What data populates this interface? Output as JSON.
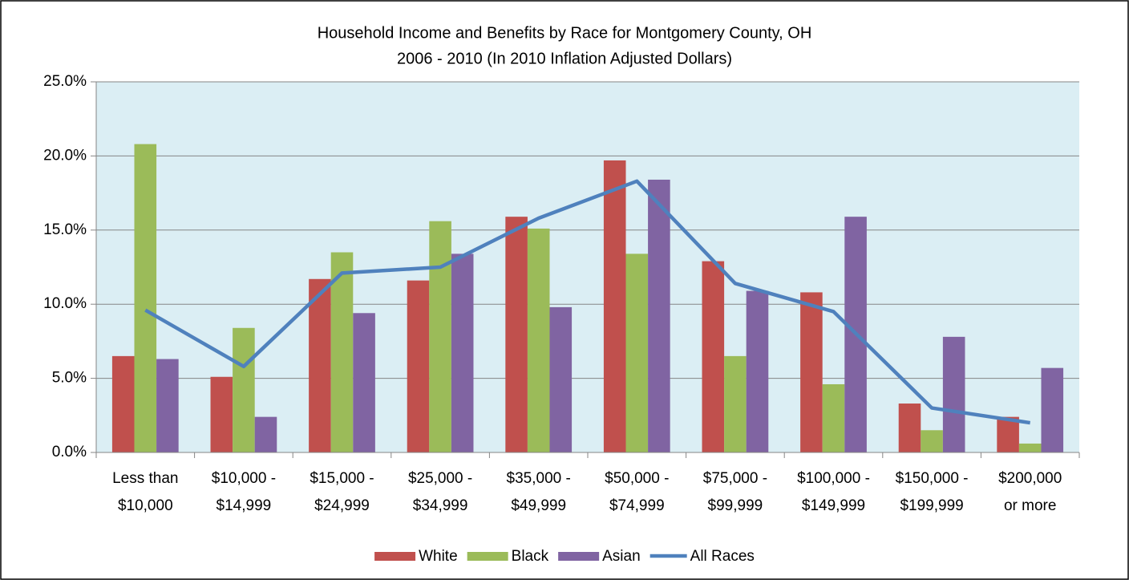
{
  "chart_data": {
    "type": "bar",
    "title": "Household Income and Benefits by Race for Montgomery County, OH",
    "subtitle": "2006 - 2010 (In 2010 Inflation Adjusted Dollars)",
    "categories": [
      [
        "Less than",
        "$10,000"
      ],
      [
        "$10,000 -",
        "$14,999"
      ],
      [
        "$15,000 -",
        "$24,999"
      ],
      [
        "$25,000 -",
        "$34,999"
      ],
      [
        "$35,000 -",
        "$49,999"
      ],
      [
        "$50,000 -",
        "$74,999"
      ],
      [
        "$75,000 -",
        "$99,999"
      ],
      [
        "$100,000 -",
        "$149,999"
      ],
      [
        "$150,000 -",
        "$199,999"
      ],
      [
        "$200,000",
        "or more"
      ]
    ],
    "series": [
      {
        "name": "White",
        "color": "#c0504d",
        "values": [
          6.5,
          5.1,
          11.7,
          11.6,
          15.9,
          19.7,
          12.9,
          10.8,
          3.3,
          2.4
        ]
      },
      {
        "name": "Black",
        "color": "#9bbb59",
        "values": [
          20.8,
          8.4,
          13.5,
          15.6,
          15.1,
          13.4,
          6.5,
          4.6,
          1.5,
          0.6
        ]
      },
      {
        "name": "Asian",
        "color": "#8064a2",
        "values": [
          6.3,
          2.4,
          9.4,
          13.4,
          9.8,
          18.4,
          10.9,
          15.9,
          7.8,
          5.7
        ]
      },
      {
        "name": "All Races",
        "color": "#4f81bd",
        "type": "line",
        "values": [
          9.6,
          5.8,
          12.1,
          12.5,
          15.8,
          18.3,
          11.4,
          9.5,
          3.0,
          2.0
        ]
      }
    ],
    "ylim": [
      0,
      25
    ],
    "yticks": [
      {
        "value": 0,
        "label": "0.0%"
      },
      {
        "value": 5,
        "label": "5.0%"
      },
      {
        "value": 10,
        "label": "10.0%"
      },
      {
        "value": 15,
        "label": "15.0%"
      },
      {
        "value": 20,
        "label": "20.0%"
      },
      {
        "value": 25,
        "label": "25.0%"
      }
    ],
    "grid": true,
    "legend": "bottom"
  }
}
